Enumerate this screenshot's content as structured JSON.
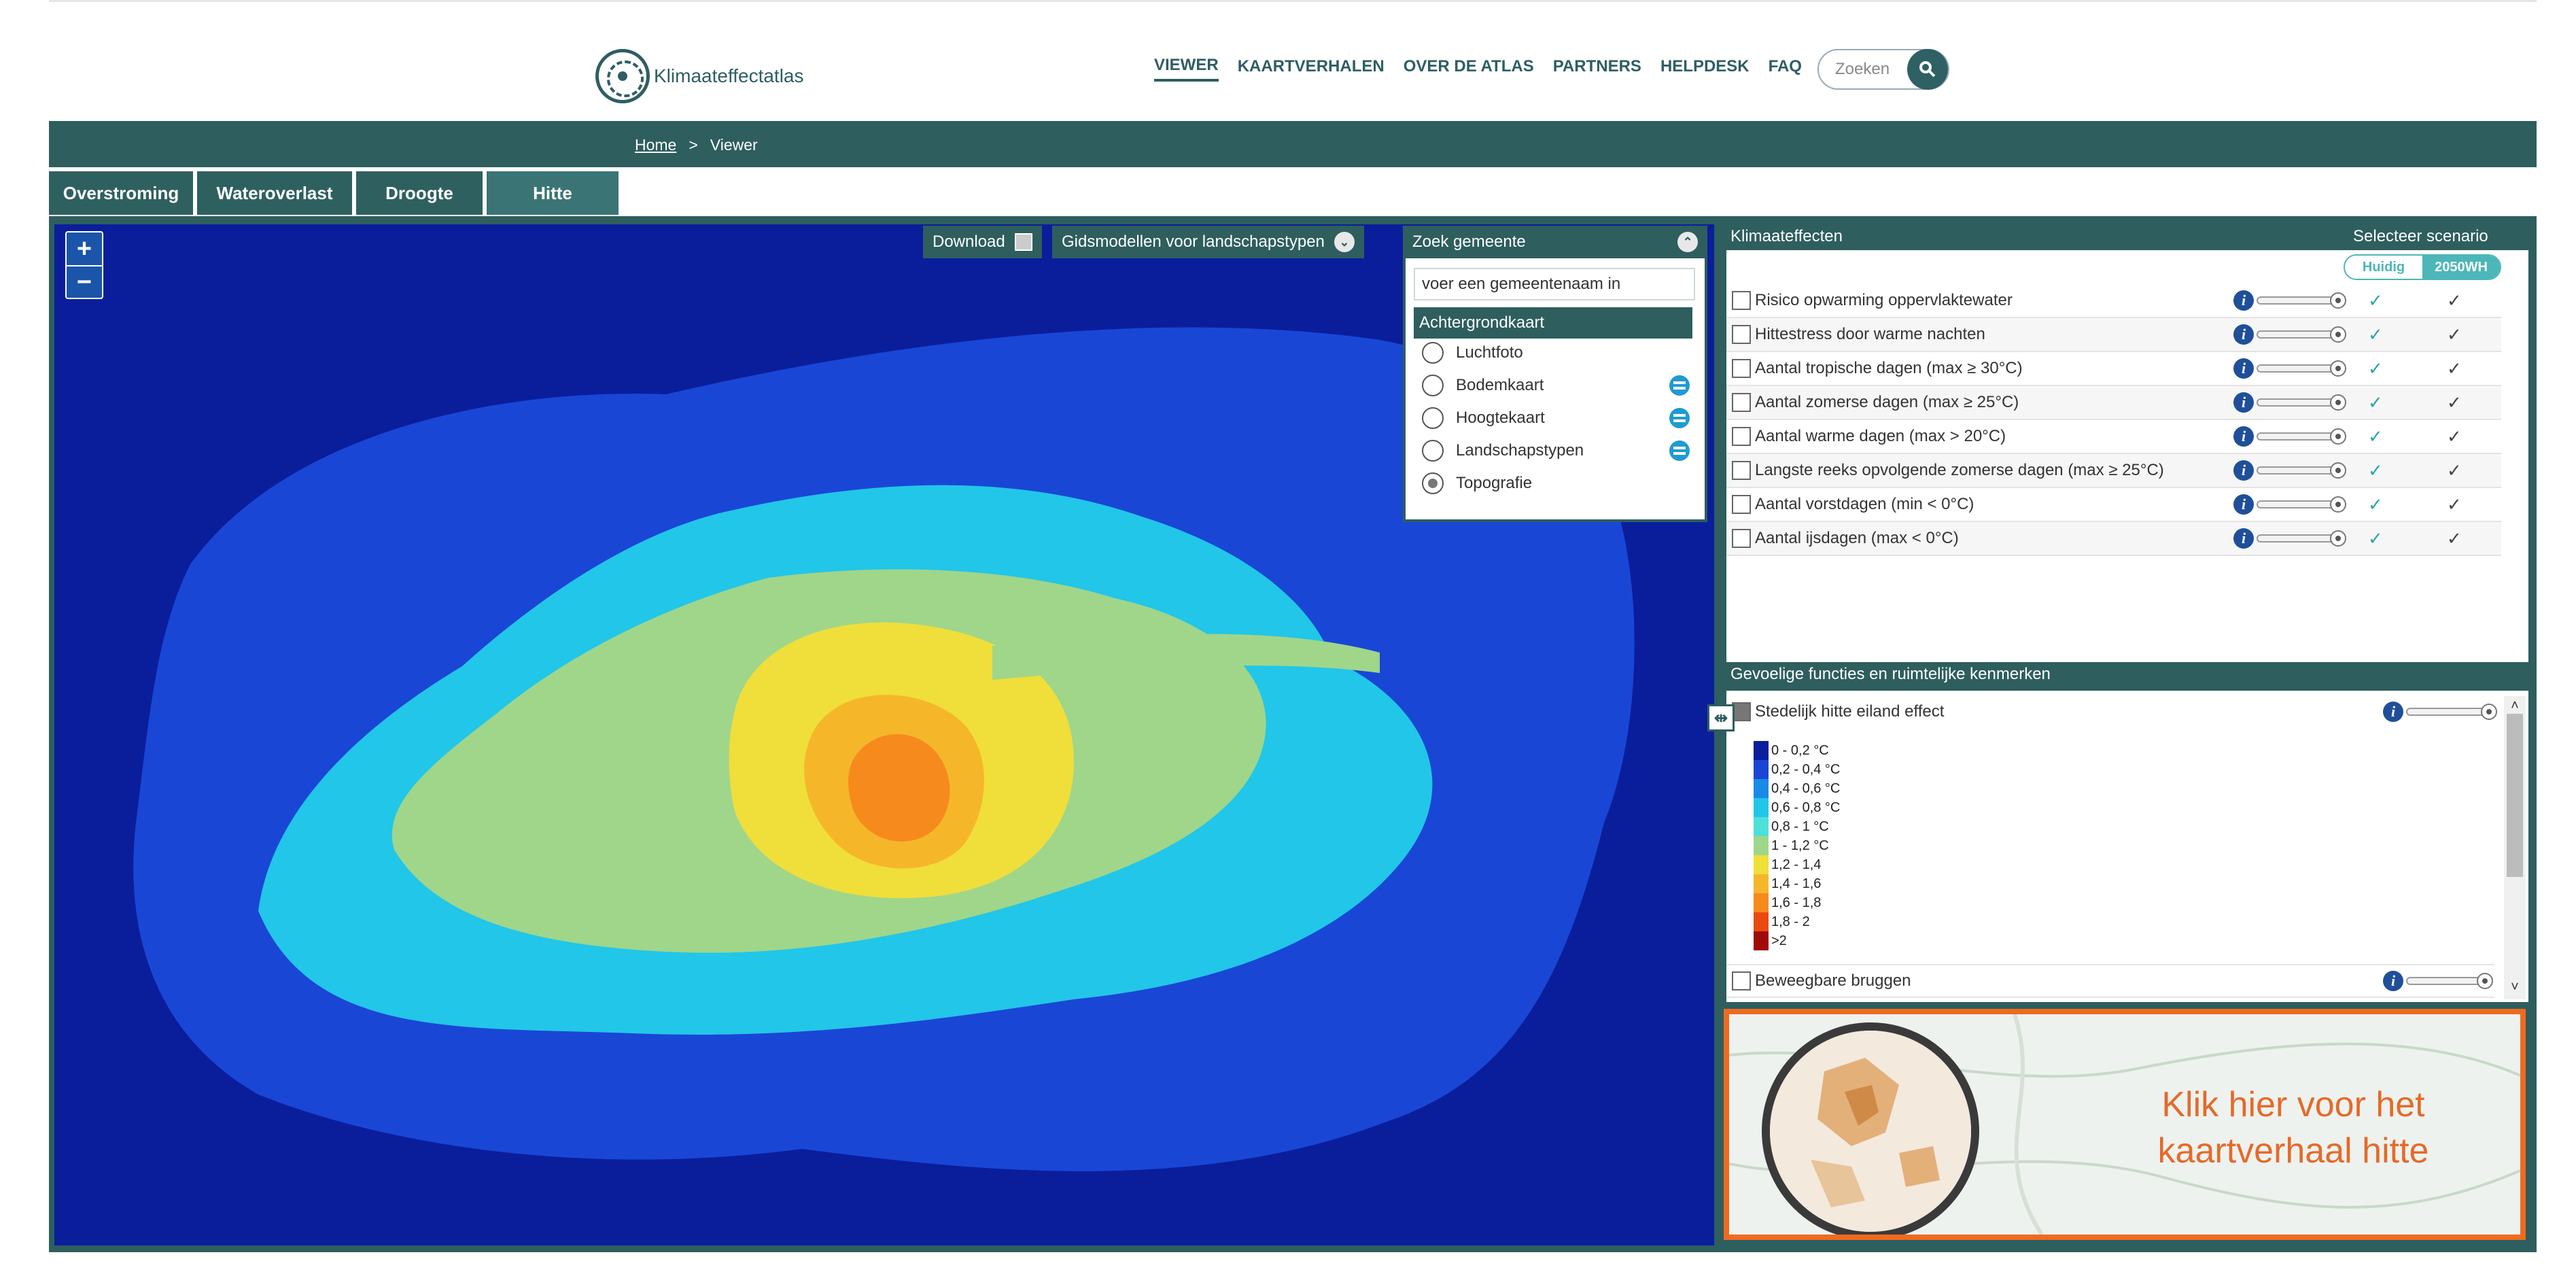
{
  "header": {
    "logo_text": "Klimaateffectatlas",
    "nav": [
      "VIEWER",
      "KAARTVERHALEN",
      "OVER DE ATLAS",
      "PARTNERS",
      "HELPDESK",
      "FAQ"
    ],
    "search_placeholder": "Zoeken"
  },
  "breadcrumb": {
    "home": "Home",
    "sep": ">",
    "current": "Viewer"
  },
  "tabs": [
    "Overstroming",
    "Wateroverlast",
    "Droogte",
    "Hitte"
  ],
  "map": {
    "zoom_in": "+",
    "zoom_out": "−",
    "download_label": "Download",
    "gids_label": "Gidsmodellen voor landschapstypen",
    "zoek_label": "Zoek gemeente",
    "gemeente_placeholder": "voer een gemeentenaam in",
    "achtergrond_title": "Achtergrondkaart",
    "achtergrond_options": [
      "Luchtfoto",
      "Bodemkaart",
      "Hoogtekaart",
      "Landschapstypen",
      "Topografie"
    ]
  },
  "klimaat": {
    "title": "Klimaateffecten",
    "scenario_title": "Selecteer scenario",
    "scenario_options": [
      "Huidig",
      "2050WH"
    ],
    "rows": [
      "Risico opwarming oppervlaktewater",
      "Hittestress door warme nachten",
      "Aantal tropische dagen (max ≥ 30°C)",
      "Aantal zomerse dagen (max ≥ 25°C)",
      "Aantal warme dagen (max > 20°C)",
      "Langste reeks opvolgende zomerse dagen (max ≥ 25°C)",
      "Aantal vorstdagen (min < 0°C)",
      "Aantal ijsdagen (max < 0°C)"
    ],
    "check_symbol": "✓"
  },
  "gevoelig": {
    "title": "Gevoelige functies en ruimtelijke kenmerken",
    "layer1": "Stedelijk hitte eiland effect",
    "layer2": "Beweegbare bruggen",
    "legend": [
      {
        "label": "0 - 0,2 °C",
        "color": "#0a1e9c"
      },
      {
        "label": "0,2 - 0,4 °C",
        "color": "#1a46d6"
      },
      {
        "label": "0,4 - 0,6 °C",
        "color": "#1a8ae6"
      },
      {
        "label": "0,6 - 0,8 °C",
        "color": "#22c6e8"
      },
      {
        "label": "0,8 - 1 °C",
        "color": "#4ee0d8"
      },
      {
        "label": "1 - 1,2 °C",
        "color": "#9fd68a"
      },
      {
        "label": "1,2 - 1,4",
        "color": "#f0de3a"
      },
      {
        "label": "1,4 - 1,6",
        "color": "#f6b62a"
      },
      {
        "label": "1,6 - 1,8",
        "color": "#f68a1c"
      },
      {
        "label": "1,8 - 2",
        "color": "#ea4a12"
      },
      {
        "label": ">2",
        "color": "#a00a0a"
      }
    ]
  },
  "promo": {
    "line1": "Klik hier voor het",
    "line2": "kaartverhaal hitte"
  },
  "colors": {
    "brand": "#2e5e5e",
    "accent": "#4cb6b8",
    "promo": "#ef6a20"
  },
  "icons": [
    "logo-icon",
    "search-icon",
    "download-icon",
    "chevron-down-icon",
    "chevron-up-icon",
    "info-icon",
    "layer-icon",
    "check-icon"
  ]
}
